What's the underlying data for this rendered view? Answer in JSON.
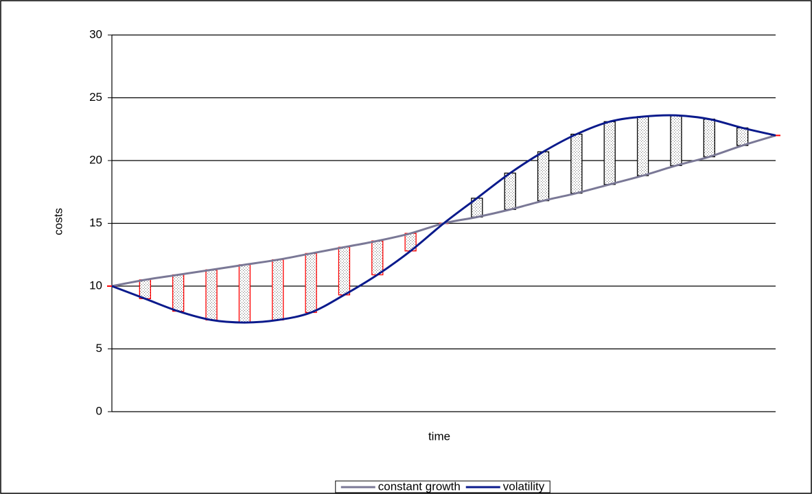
{
  "chart_data": {
    "type": "line",
    "x_label": "time",
    "y_label": "costs",
    "ylim": [
      0,
      30
    ],
    "yticks": [
      0,
      5,
      10,
      15,
      20,
      25,
      30
    ],
    "grid": true,
    "series": [
      {
        "name": "constant growth",
        "color": "#7a7896",
        "values": [
          10,
          10.5,
          10.9,
          11.3,
          11.7,
          12.1,
          12.6,
          13.1,
          13.6,
          14.2,
          15,
          15.5,
          16.1,
          16.8,
          17.4,
          18.1,
          18.8,
          19.6,
          20.3,
          21.2,
          22
        ]
      },
      {
        "name": "volatility",
        "color": "#0a1a8c",
        "values": [
          10,
          9.0,
          8.0,
          7.3,
          7.1,
          7.3,
          7.9,
          9.3,
          10.9,
          12.8,
          15,
          17.0,
          19.0,
          20.7,
          22.1,
          23.1,
          23.5,
          23.6,
          23.3,
          22.6,
          22
        ]
      }
    ],
    "bar_below_color": "#ff0000",
    "bar_above_color": "#000000",
    "legend": "bottom"
  }
}
